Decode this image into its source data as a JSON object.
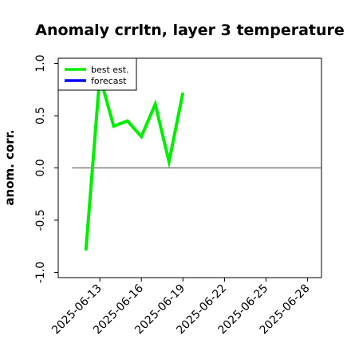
{
  "chart_data": {
    "type": "line",
    "title": "Anomaly crrltn, layer 3 temperature",
    "ylabel": "anom. corr.",
    "xlabel": "",
    "ylim": [
      -1.05,
      1.05
    ],
    "yticks": [
      1.0,
      0.5,
      0.0,
      -0.5,
      -1.0
    ],
    "ytick_labels": [
      "1.0",
      "0.5",
      "0.0",
      "-0.5",
      "-1.0"
    ],
    "xlim": [
      "2025-06-10",
      "2025-06-29"
    ],
    "xticks": [
      "2025-06-13",
      "2025-06-16",
      "2025-06-19",
      "2025-06-22",
      "2025-06-25",
      "2025-06-28"
    ],
    "highlighted_xtick": "2025-06-19",
    "highlight_color": "#2e8b2e",
    "reference_line": {
      "y": 0.0,
      "x_from": "2025-06-11",
      "x_to": "2025-06-29",
      "color": "#666666"
    },
    "legend": {
      "placement": "top-left",
      "entries": [
        "best est.",
        "forecast"
      ]
    },
    "series": [
      {
        "name": "best est.",
        "color": "#00ee00",
        "x": [
          "2025-06-12",
          "2025-06-13",
          "2025-06-14",
          "2025-06-15",
          "2025-06-16",
          "2025-06-17",
          "2025-06-18",
          "2025-06-19"
        ],
        "values": [
          -0.79,
          0.88,
          0.4,
          0.45,
          0.3,
          0.61,
          0.06,
          0.72
        ]
      },
      {
        "name": "forecast",
        "color": "#0000ff",
        "x": [],
        "values": []
      }
    ]
  }
}
